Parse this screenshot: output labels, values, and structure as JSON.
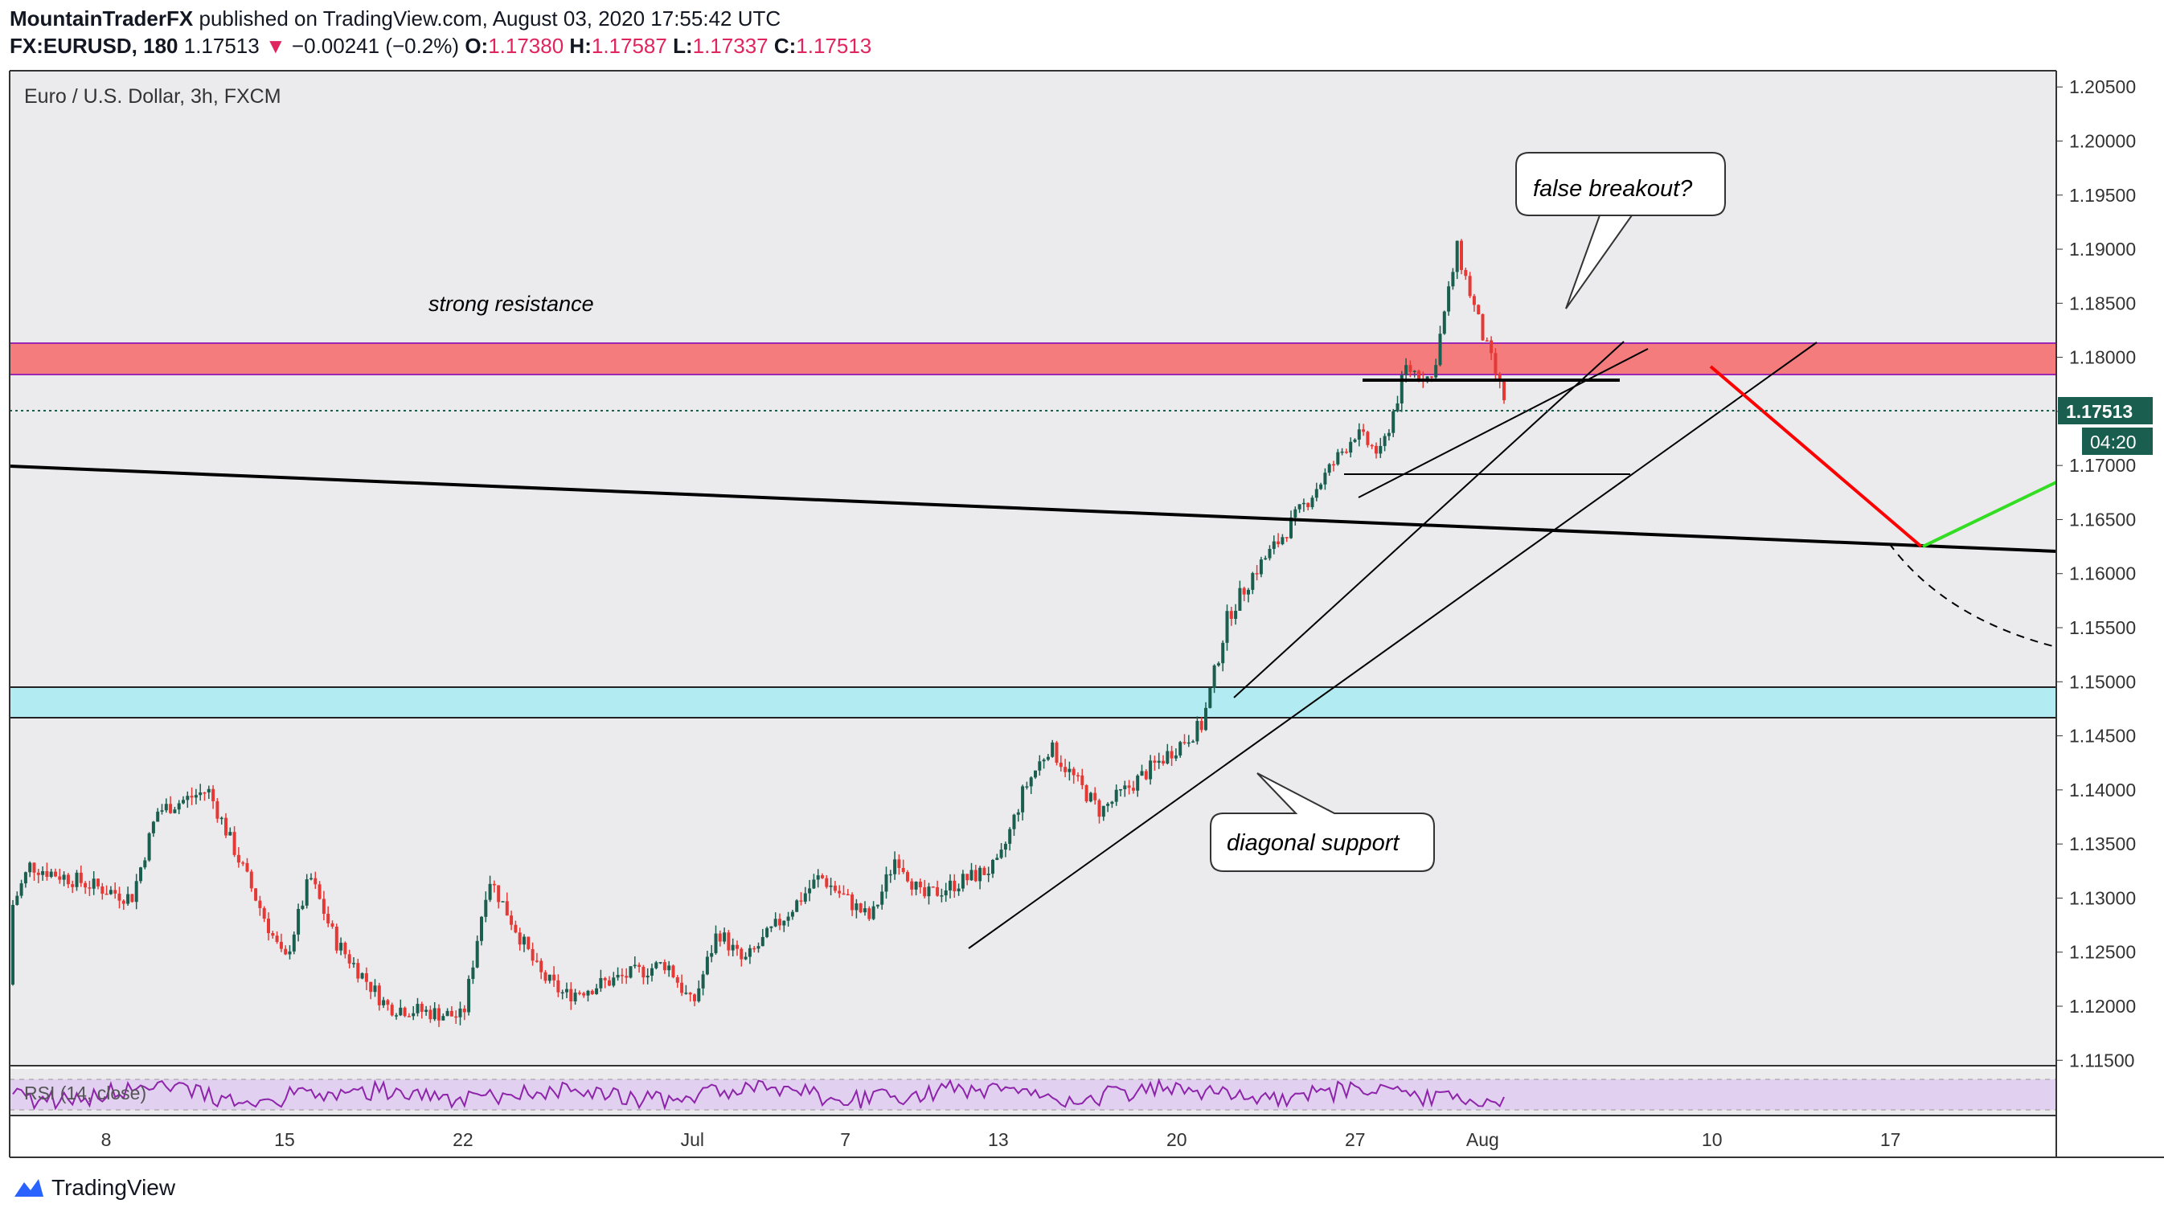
{
  "header": {
    "author": "MountainTraderFX",
    "published_text": "published on TradingView.com, August 03, 2020 17:55:42 UTC",
    "symbol": "FX:EURUSD, 180",
    "last": "1.17513",
    "change_arrow": "▼",
    "change": "−0.00241 (−0.2%)",
    "open_label": "O:",
    "open": "1.17380",
    "high_label": "H:",
    "high": "1.17587",
    "low_label": "L:",
    "low": "1.17337",
    "close_label": "C:",
    "close": "1.17513"
  },
  "footer": {
    "brand": "TradingView",
    "logo_icon": "tradingview-logo-icon"
  },
  "colors": {
    "up": "#1a5e4f",
    "down": "#e53935",
    "resistance_zone": "#f47c7c",
    "support_zone": "#b2ebf2",
    "rsi_line": "#8e24aa",
    "rsi_band": "#e1d0f0",
    "price_label_bg": "#1a5e4f",
    "red_arrow": "#ff0000",
    "green_arrow": "#33dd22"
  },
  "chart_data": {
    "type": "candlestick",
    "title": "Euro / U.S. Dollar, 3h, FXCM",
    "ylim": [
      1.1145,
      1.2065
    ],
    "y_ticks": [
      "1.20500",
      "1.20000",
      "1.19500",
      "1.19000",
      "1.18500",
      "1.18000",
      "1.17500",
      "1.17000",
      "1.16500",
      "1.16000",
      "1.15500",
      "1.15000",
      "1.14500",
      "1.14000",
      "1.13500",
      "1.13000",
      "1.12500",
      "1.12000",
      "1.11500"
    ],
    "x_ticks": [
      "8",
      "15",
      "22",
      "Jul",
      "7",
      "13",
      "20",
      "27",
      "Aug",
      "10",
      "17"
    ],
    "current_price": "1.17513",
    "countdown": "04:20",
    "anchors": [
      {
        "date": "Jun 3",
        "price": 1.122
      },
      {
        "date": "Jun 5",
        "price": 1.133
      },
      {
        "date": "Jun 9",
        "price": 1.13
      },
      {
        "date": "Jun 10",
        "price": 1.138
      },
      {
        "date": "Jun 12",
        "price": 1.14
      },
      {
        "date": "Jun 15",
        "price": 1.124
      },
      {
        "date": "Jun 16",
        "price": 1.132
      },
      {
        "date": "Jun 17",
        "price": 1.126
      },
      {
        "date": "Jun 19",
        "price": 1.12
      },
      {
        "date": "Jun 22",
        "price": 1.119
      },
      {
        "date": "Jun 23",
        "price": 1.132
      },
      {
        "date": "Jun 25",
        "price": 1.123
      },
      {
        "date": "Jun 26",
        "price": 1.121
      },
      {
        "date": "Jun 30",
        "price": 1.124
      },
      {
        "date": "Jul 1",
        "price": 1.12
      },
      {
        "date": "Jul 2",
        "price": 1.127
      },
      {
        "date": "Jul 3",
        "price": 1.124
      },
      {
        "date": "Jul 6",
        "price": 1.132
      },
      {
        "date": "Jul 8",
        "price": 1.128
      },
      {
        "date": "Jul 9",
        "price": 1.134
      },
      {
        "date": "Jul 10",
        "price": 1.13
      },
      {
        "date": "Jul 13",
        "price": 1.133
      },
      {
        "date": "Jul 14",
        "price": 1.14
      },
      {
        "date": "Jul 15",
        "price": 1.144
      },
      {
        "date": "Jul 17",
        "price": 1.138
      },
      {
        "date": "Jul 20",
        "price": 1.144
      },
      {
        "date": "Jul 21",
        "price": 1.146
      },
      {
        "date": "Jul 22",
        "price": 1.156
      },
      {
        "date": "Jul 23",
        "price": 1.16
      },
      {
        "date": "Jul 24",
        "price": 1.163
      },
      {
        "date": "Jul 27",
        "price": 1.173
      },
      {
        "date": "Jul 28",
        "price": 1.171
      },
      {
        "date": "Jul 29",
        "price": 1.179
      },
      {
        "date": "Jul 30",
        "price": 1.178
      },
      {
        "date": "Jul 31",
        "price": 1.19
      },
      {
        "date": "Aug 1",
        "price": 1.182
      },
      {
        "date": "Aug 2",
        "price": 1.1751
      }
    ],
    "rsi_label": "RSI (14, close)",
    "zones": [
      {
        "name": "strong resistance",
        "from": 1.1785,
        "to": 1.1814
      },
      {
        "name": "support",
        "from": 1.1466,
        "to": 1.1495
      }
    ],
    "annotations": [
      "strong resistance",
      "false breakout?",
      "diagonal support"
    ]
  }
}
